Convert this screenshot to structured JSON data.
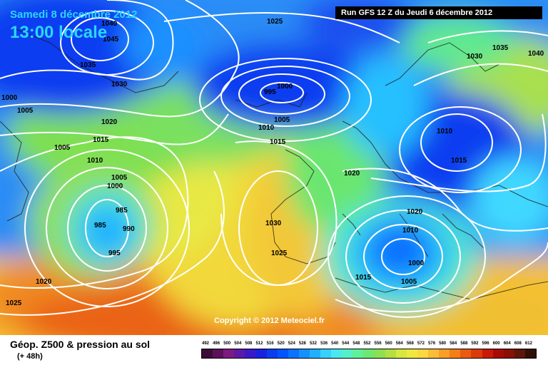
{
  "header": {
    "date": "Samedi 8 décembre 2012",
    "local_time": "13:00 locale",
    "run_info": "Run GFS 12 Z du Jeudi 6 décembre 2012"
  },
  "copyright": "Copyright © 2012 Meteociel.fr",
  "product": {
    "title": "Géop. Z500 & pression au sol",
    "lead_time": "(+ 48h)"
  },
  "legend": {
    "values": [
      "492",
      "496",
      "500",
      "504",
      "508",
      "512",
      "516",
      "520",
      "524",
      "528",
      "532",
      "536",
      "540",
      "544",
      "548",
      "552",
      "556",
      "560",
      "564",
      "568",
      "572",
      "576",
      "580",
      "584",
      "588",
      "592",
      "596",
      "600",
      "604",
      "608",
      "612"
    ],
    "colors": [
      "#3d0a3a",
      "#5b115a",
      "#7d1a7f",
      "#5a1aa6",
      "#3a1ac8",
      "#1a22e0",
      "#0a3cf0",
      "#0055ff",
      "#0a72ff",
      "#1590ff",
      "#1fb0ff",
      "#38d0ff",
      "#4ae8f0",
      "#55f0c8",
      "#60f09a",
      "#6ee870",
      "#8ee050",
      "#b2e040",
      "#d6e840",
      "#f0e840",
      "#fbd840",
      "#fbbc38",
      "#fa9e28",
      "#f47e18",
      "#ea5a10",
      "#dd3a0a",
      "#c81a06",
      "#a80a06",
      "#881006",
      "#5c1806",
      "#301006"
    ]
  },
  "isobar_labels": [
    "1040",
    "1045",
    "1035",
    "1030",
    "1000",
    "1005",
    "1020",
    "1015",
    "1005",
    "1010",
    "1005",
    "1000",
    "985",
    "985",
    "990",
    "995",
    "1025",
    "1020",
    "1025",
    "1030",
    "1025",
    "1000",
    "995",
    "1005",
    "1010",
    "1015",
    "1020",
    "1030",
    "1035",
    "1040",
    "1010",
    "1015",
    "1020",
    "1010",
    "1000",
    "1015",
    "1005"
  ]
}
